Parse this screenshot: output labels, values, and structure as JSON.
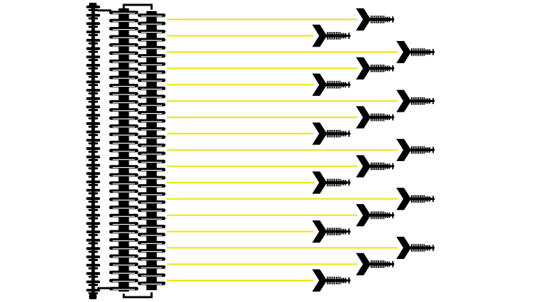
{
  "colors": {
    "background": "#ffffff",
    "ink": "#000000",
    "line": "#f2e51a"
  },
  "icons": {
    "rail": "chain-rail-icon",
    "column": "tiered-column-icon",
    "arrow": "feathered-arrowhead-icon"
  },
  "rows": [
    {
      "offset": 2
    },
    {
      "offset": 1
    },
    {
      "offset": 3
    },
    {
      "offset": 2
    },
    {
      "offset": 1
    },
    {
      "offset": 3
    },
    {
      "offset": 2
    },
    {
      "offset": 1
    },
    {
      "offset": 3
    },
    {
      "offset": 2
    },
    {
      "offset": 1
    },
    {
      "offset": 3
    },
    {
      "offset": 2
    },
    {
      "offset": 1
    },
    {
      "offset": 3
    },
    {
      "offset": 2
    },
    {
      "offset": 1
    }
  ]
}
